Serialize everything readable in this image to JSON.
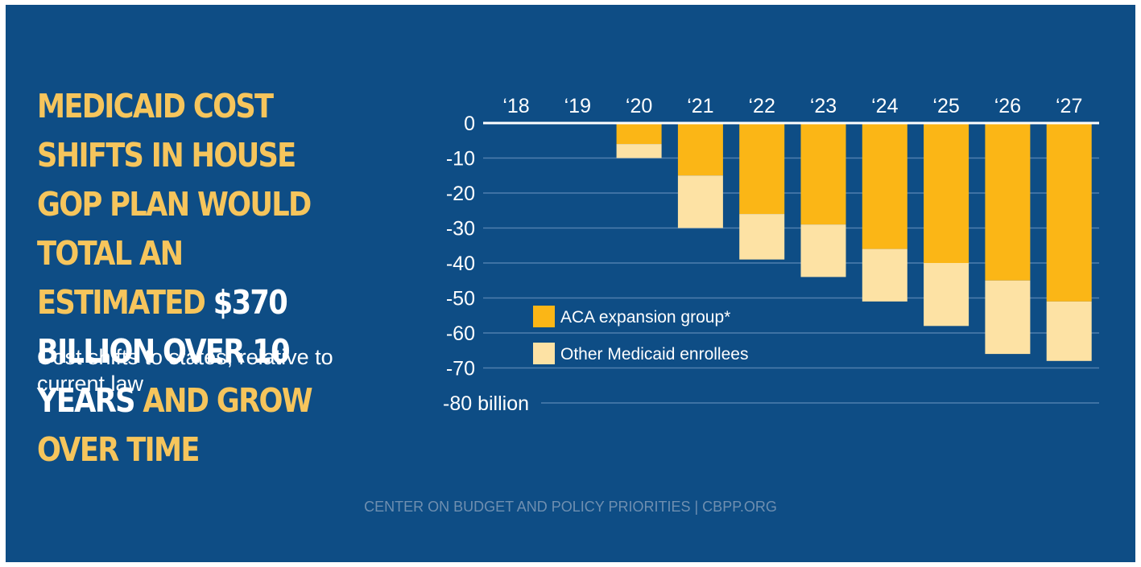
{
  "headline": {
    "part1": "Medicaid cost shifts in House GOP plan would total an estimated ",
    "part2": "$370 billion over 10 years",
    "part3": " and grow over time"
  },
  "subtitle": "Cost shifts to states, relative to current law",
  "source": "CENTER ON BUDGET AND POLICY PRIORITIES | CBPP.ORG",
  "colors": {
    "background": "#0e4d85",
    "headline": "#f6c55c",
    "aca": "#fbb616",
    "other": "#fde2a4",
    "gridline": "#4f7fae"
  },
  "chart_data": {
    "type": "bar",
    "stacked": true,
    "categories": [
      "‘18",
      "‘19",
      "‘20",
      "‘21",
      "‘22",
      "‘23",
      "‘24",
      "‘25",
      "‘26",
      "‘27"
    ],
    "series": [
      {
        "name": "ACA expansion group*",
        "values": [
          0,
          0,
          -6,
          -15,
          -26,
          -29,
          -36,
          -40,
          -45,
          -51
        ]
      },
      {
        "name": "Other Medicaid enrollees",
        "values": [
          0,
          0,
          -4,
          -15,
          -13,
          -15,
          -15,
          -18,
          -21,
          -17
        ]
      }
    ],
    "ylim": [
      -80,
      0
    ],
    "yticks": [
      0,
      -10,
      -20,
      -30,
      -40,
      -50,
      -60,
      -70,
      -80
    ],
    "ytick_labels": [
      "0",
      "-10",
      "-20",
      "-30",
      "-40",
      "-50",
      "-60",
      "-70",
      "-80 billion"
    ],
    "xaxis_position": "top",
    "grid": true,
    "legend_position": "bottom-left"
  }
}
